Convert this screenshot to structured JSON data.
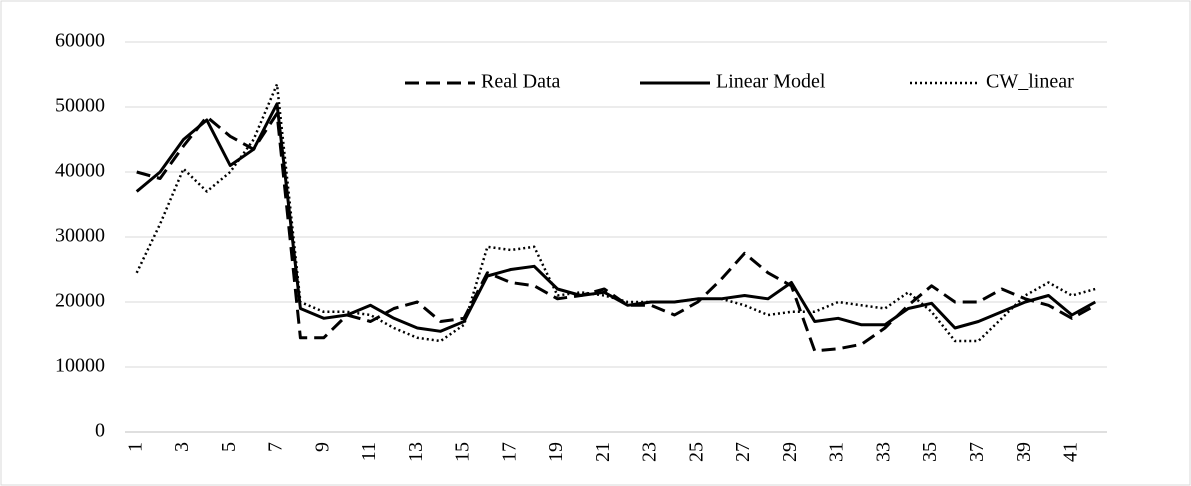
{
  "chart_data": {
    "type": "line",
    "categories": [
      "1",
      null,
      "3",
      null,
      "5",
      null,
      "7",
      null,
      "9",
      null,
      "11",
      null,
      "13",
      null,
      "15",
      null,
      "17",
      null,
      "19",
      null,
      "21",
      null,
      "23",
      null,
      "25",
      null,
      "27",
      null,
      "29",
      null,
      "31",
      null,
      "33",
      null,
      "35",
      null,
      "37",
      null,
      "39",
      null,
      "41",
      null
    ],
    "series": [
      {
        "name": "Real Data",
        "color": "#000000",
        "dash": "dashed",
        "values": [
          40000,
          39000,
          44000,
          48500,
          45500,
          43500,
          49000,
          14500,
          14500,
          18000,
          17000,
          19000,
          20000,
          17000,
          17500,
          24500,
          23000,
          22500,
          20500,
          21000,
          22000,
          19500,
          19500,
          18000,
          20000,
          23500,
          27500,
          24500,
          22500,
          12500,
          12800,
          13500,
          16000,
          19500,
          22500,
          20000,
          20000,
          22000,
          20500,
          19500,
          17500,
          19500
        ]
      },
      {
        "name": "Linear Model",
        "color": "#000000",
        "dash": "solid",
        "values": [
          37000,
          40000,
          45000,
          48000,
          41000,
          43500,
          50500,
          19000,
          17500,
          18000,
          19500,
          17500,
          16000,
          15500,
          17000,
          24000,
          25000,
          25500,
          22000,
          21000,
          21500,
          19500,
          20000,
          20000,
          20500,
          20500,
          21000,
          20500,
          23000,
          17000,
          17500,
          16500,
          16500,
          19000,
          19800,
          16000,
          17000,
          18500,
          20000,
          21000,
          18000,
          20000
        ]
      },
      {
        "name": "CW_linear",
        "color": "#000000",
        "dash": "dotted",
        "values": [
          24500,
          32000,
          40500,
          37000,
          40000,
          45000,
          53500,
          20000,
          18500,
          18500,
          18000,
          16000,
          14500,
          14000,
          16500,
          28500,
          28000,
          28500,
          21000,
          21500,
          21000,
          20000,
          20000,
          20000,
          20500,
          20500,
          19500,
          18000,
          18500,
          18500,
          20000,
          19500,
          19000,
          21500,
          18500,
          14000,
          14000,
          17500,
          21000,
          23000,
          21000,
          22000
        ]
      }
    ],
    "ylim": [
      0,
      60000
    ],
    "yticks": [
      0,
      10000,
      20000,
      30000,
      40000,
      50000,
      60000
    ],
    "grid": true,
    "legend": "top"
  }
}
